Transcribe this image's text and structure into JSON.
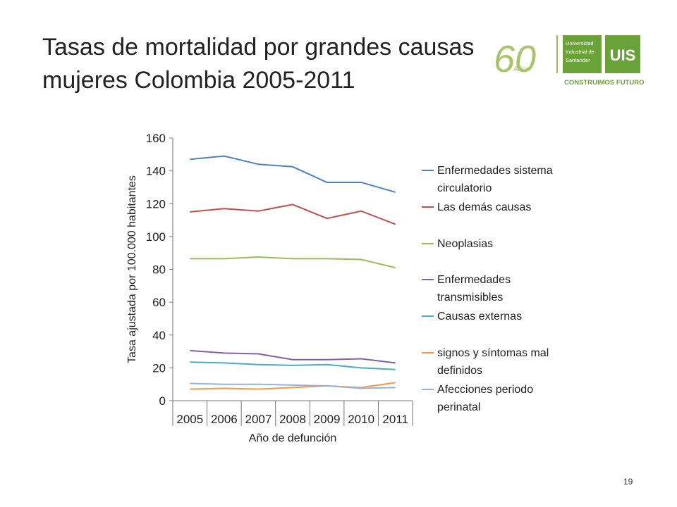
{
  "slide": {
    "title": [
      "Tasas de mortalidad por grandes causas",
      "mujeres Colombia  2005-2011"
    ],
    "page_number": "19",
    "logo": {
      "anniversary": "60",
      "anniversary_word": "Años",
      "university": [
        "Universidad",
        "Industrial de",
        "Santander"
      ],
      "initials": "UIS",
      "slogan": "CONSTRUIMOS FUTURO"
    }
  },
  "chart_data": {
    "type": "line",
    "x_label": "Año de defunción",
    "y_label": "Tasa ajustada por 100.000 habitantes",
    "categories": [
      "2005",
      "2006",
      "2007",
      "2008",
      "2009",
      "2010",
      "2011"
    ],
    "ylim": [
      0,
      160
    ],
    "yticks": [
      0,
      20,
      40,
      60,
      80,
      100,
      120,
      140,
      160
    ],
    "series": [
      {
        "name": "Enfermedades sistema circulatorio",
        "color": "#4f81bd",
        "values": [
          147,
          149,
          144,
          142.5,
          133,
          133,
          127
        ]
      },
      {
        "name": "Las demás causas",
        "color": "#c0504d",
        "values": [
          115,
          117,
          115.5,
          119.5,
          111,
          115.5,
          107.5
        ]
      },
      {
        "name": "Neoplasias",
        "color": "#9bbb59",
        "values": [
          86.5,
          86.5,
          87.5,
          86.5,
          86.5,
          86,
          81
        ]
      },
      {
        "name": "Enfermedades transmisibles",
        "color": "#8064a2",
        "values": [
          30.5,
          29,
          28.5,
          25,
          25,
          25.5,
          23
        ]
      },
      {
        "name": "Causas externas",
        "color": "#4bacc6",
        "values": [
          23.5,
          23,
          22,
          21.5,
          22,
          20,
          19
        ]
      },
      {
        "name": "signos y síntomas mal definidos",
        "color": "#f79646",
        "values": [
          7,
          7.5,
          7,
          8,
          9,
          8,
          11
        ]
      },
      {
        "name": "Afecciones periodo perinatal",
        "color": "#95b3d7",
        "values": [
          10.5,
          10,
          10,
          9.5,
          9,
          7.5,
          8
        ]
      }
    ]
  }
}
